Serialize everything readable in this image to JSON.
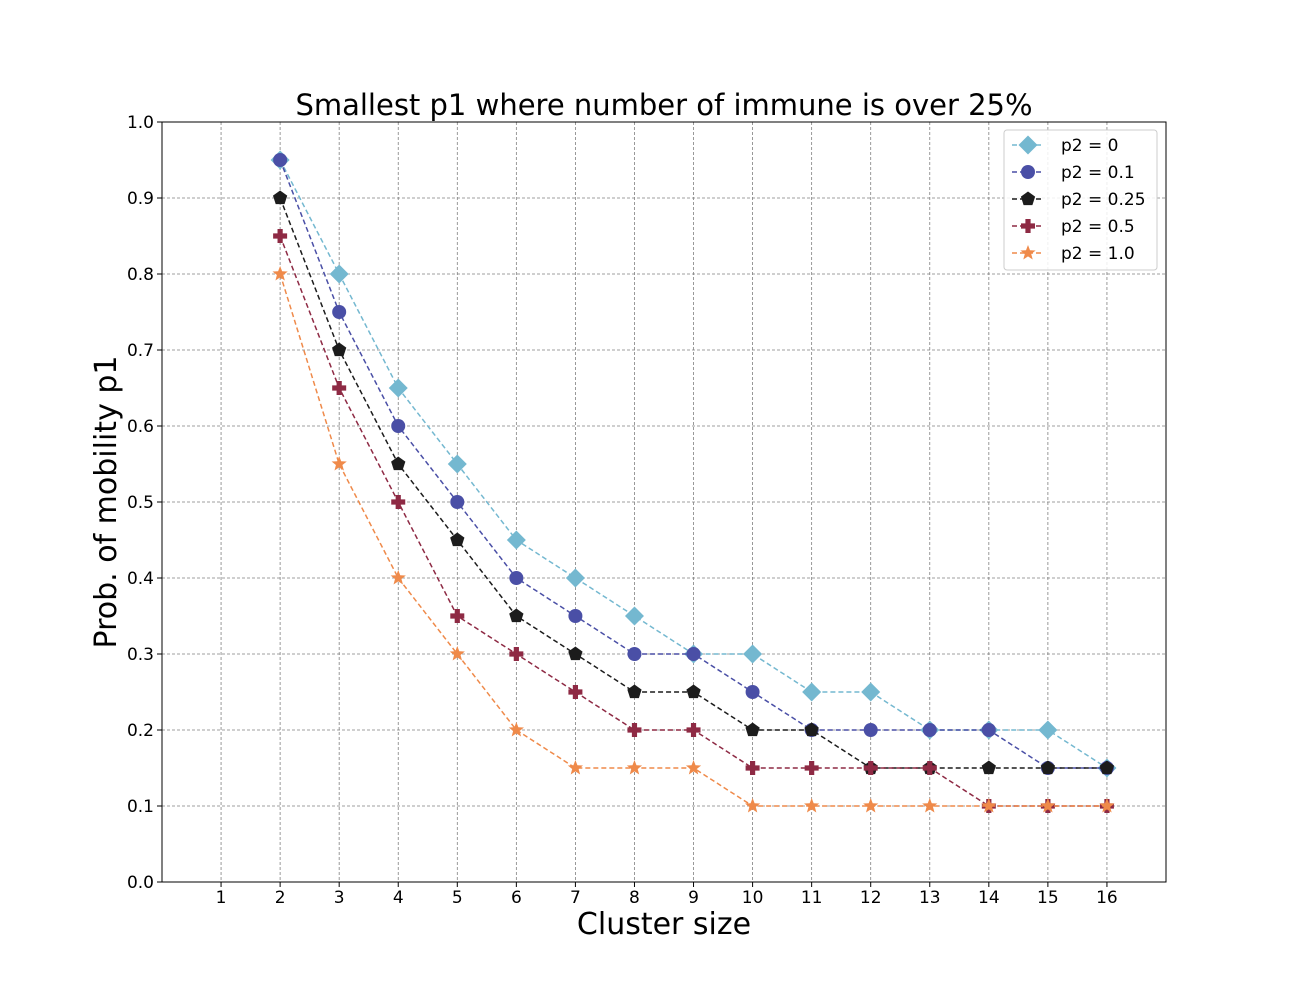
{
  "chart_data": {
    "type": "line",
    "title": "Smallest p1 where number of immune is over 25%",
    "xlabel": "Cluster size",
    "ylabel": "Prob. of mobility p1",
    "x_ticks": [
      "1",
      "2",
      "3",
      "4",
      "5",
      "6",
      "7",
      "8",
      "9",
      "10",
      "11",
      "12",
      "13",
      "14",
      "15",
      "16"
    ],
    "y_ticks": [
      "0.0",
      "0.1",
      "0.2",
      "0.3",
      "0.4",
      "0.5",
      "0.6",
      "0.7",
      "0.8",
      "0.9",
      "1.0"
    ],
    "xlim": [
      0,
      17
    ],
    "ylim": [
      0.0,
      1.0
    ],
    "grid": true,
    "legend_position": "top-right",
    "x": [
      2,
      3,
      4,
      5,
      6,
      7,
      8,
      9,
      10,
      11,
      12,
      13,
      14,
      15,
      16
    ],
    "series": [
      {
        "name": "p2 = 0",
        "color": "#74b8d0",
        "marker": "diamond",
        "values": [
          0.95,
          0.8,
          0.65,
          0.55,
          0.45,
          0.4,
          0.35,
          0.3,
          0.3,
          0.25,
          0.25,
          0.2,
          0.2,
          0.2,
          0.15
        ]
      },
      {
        "name": "p2 = 0.1",
        "color": "#4a4fa6",
        "marker": "circle",
        "values": [
          0.95,
          0.75,
          0.6,
          0.5,
          0.4,
          0.35,
          0.3,
          0.3,
          0.25,
          0.2,
          0.2,
          0.2,
          0.2,
          0.15,
          0.15
        ]
      },
      {
        "name": "p2 = 0.25",
        "color": "#1c1c1c",
        "marker": "pentagon",
        "values": [
          0.9,
          0.7,
          0.55,
          0.45,
          0.35,
          0.3,
          0.25,
          0.25,
          0.2,
          0.2,
          0.15,
          0.15,
          0.15,
          0.15,
          0.15
        ]
      },
      {
        "name": "p2 = 0.5",
        "color": "#8e2a44",
        "marker": "plus",
        "values": [
          0.85,
          0.65,
          0.5,
          0.35,
          0.3,
          0.25,
          0.2,
          0.2,
          0.15,
          0.15,
          0.15,
          0.15,
          0.1,
          0.1,
          0.1
        ]
      },
      {
        "name": "p2 = 1.0",
        "color": "#ef8a4a",
        "marker": "star",
        "values": [
          0.8,
          0.55,
          0.4,
          0.3,
          0.2,
          0.15,
          0.15,
          0.15,
          0.1,
          0.1,
          0.1,
          0.1,
          0.1,
          0.1,
          0.1
        ]
      }
    ]
  }
}
